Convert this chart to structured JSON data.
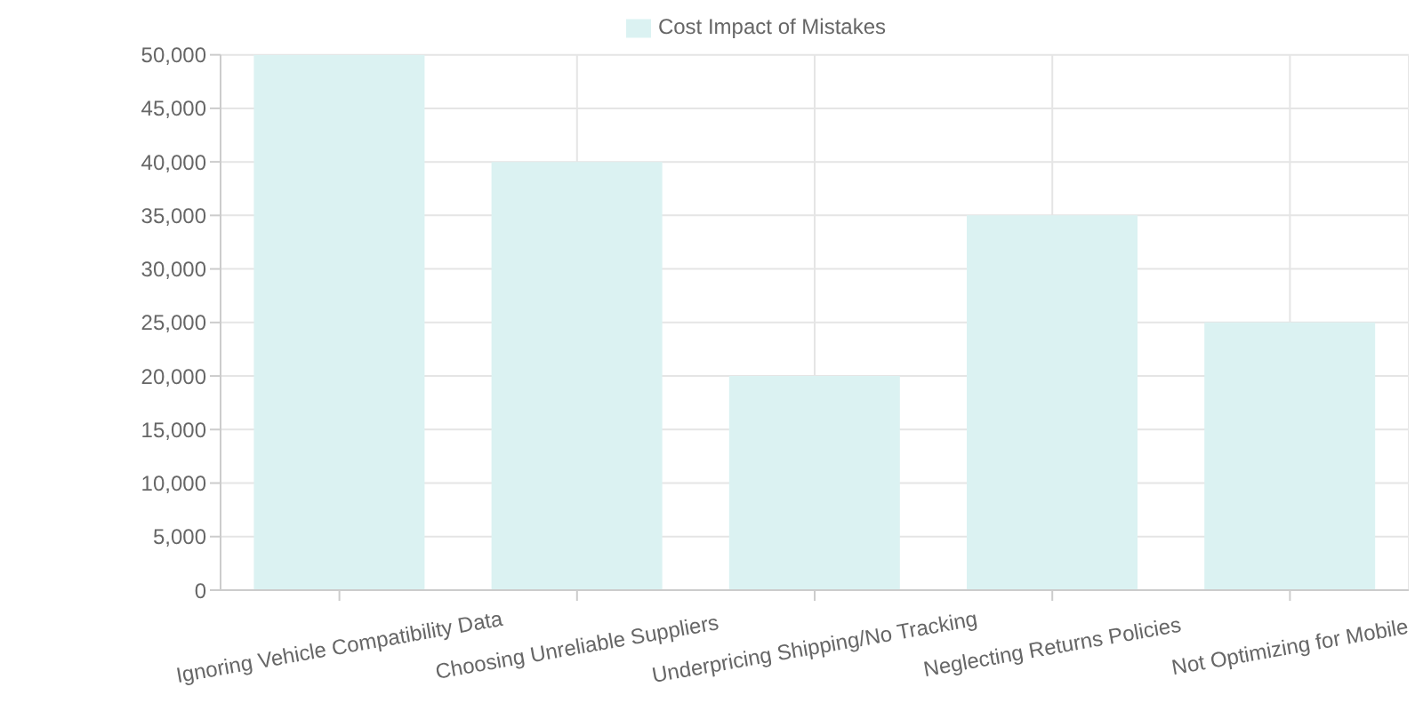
{
  "chart_data": {
    "type": "bar",
    "categories": [
      "Ignoring Vehicle Compatibility Data",
      "Choosing Unreliable Suppliers",
      "Underpricing Shipping/No Tracking",
      "Neglecting Returns Policies",
      "Not Optimizing for Mobile"
    ],
    "series": [
      {
        "name": "Cost Impact of Mistakes",
        "color": "#dbf2f2",
        "values": [
          50000,
          40000,
          20000,
          35000,
          25000
        ]
      }
    ],
    "ylim": [
      0,
      50000
    ],
    "yticks": [
      {
        "value": 0,
        "label": "0"
      },
      {
        "value": 5000,
        "label": "5,000"
      },
      {
        "value": 10000,
        "label": "10,000"
      },
      {
        "value": 15000,
        "label": "15,000"
      },
      {
        "value": 20000,
        "label": "20,000"
      },
      {
        "value": 25000,
        "label": "25,000"
      },
      {
        "value": 30000,
        "label": "30,000"
      },
      {
        "value": 35000,
        "label": "35,000"
      },
      {
        "value": 40000,
        "label": "40,000"
      },
      {
        "value": 45000,
        "label": "45,000"
      },
      {
        "value": 50000,
        "label": "50,000"
      }
    ],
    "grid": true,
    "legend": "top"
  }
}
